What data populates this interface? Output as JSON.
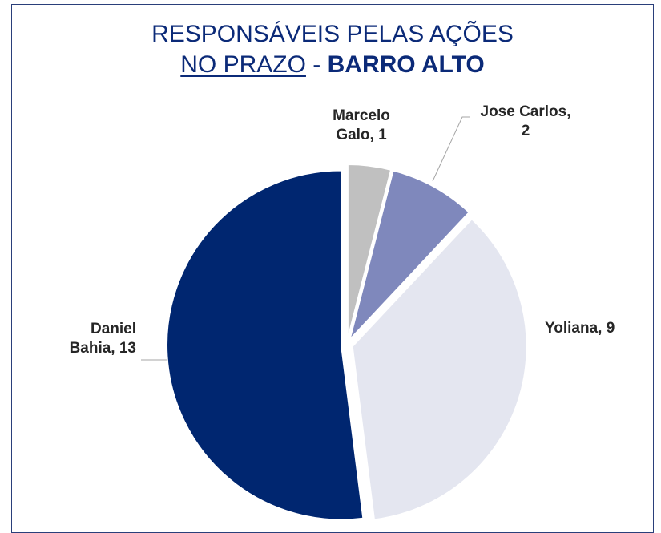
{
  "title": {
    "line1": "RESPONSÁVEIS PELAS AÇÕES",
    "line2_underlined": "NO PRAZO",
    "line2_separator": " - ",
    "line2_bold": "BARRO ALTO"
  },
  "chart_data": {
    "type": "pie",
    "title": "RESPONSÁVEIS PELAS AÇÕES NO PRAZO - BARRO ALTO",
    "slices": [
      {
        "label": "Marcelo Galo",
        "value": 1,
        "color": "#c0c0c0",
        "label_lines": [
          "Marcelo",
          "Galo, 1"
        ]
      },
      {
        "label": "Jose Carlos",
        "value": 2,
        "color": "#7f88bc",
        "label_lines": [
          "Jose Carlos,",
          "2"
        ]
      },
      {
        "label": "Yoliana",
        "value": 9,
        "color": "#e4e6f0",
        "label_lines": [
          "Yoliana, 9"
        ]
      },
      {
        "label": "Daniel Bahia",
        "value": 13,
        "color": "#002670",
        "label_lines": [
          "Daniel",
          "Bahia, 13"
        ]
      }
    ],
    "legend": "none",
    "data_labels": "outside"
  }
}
